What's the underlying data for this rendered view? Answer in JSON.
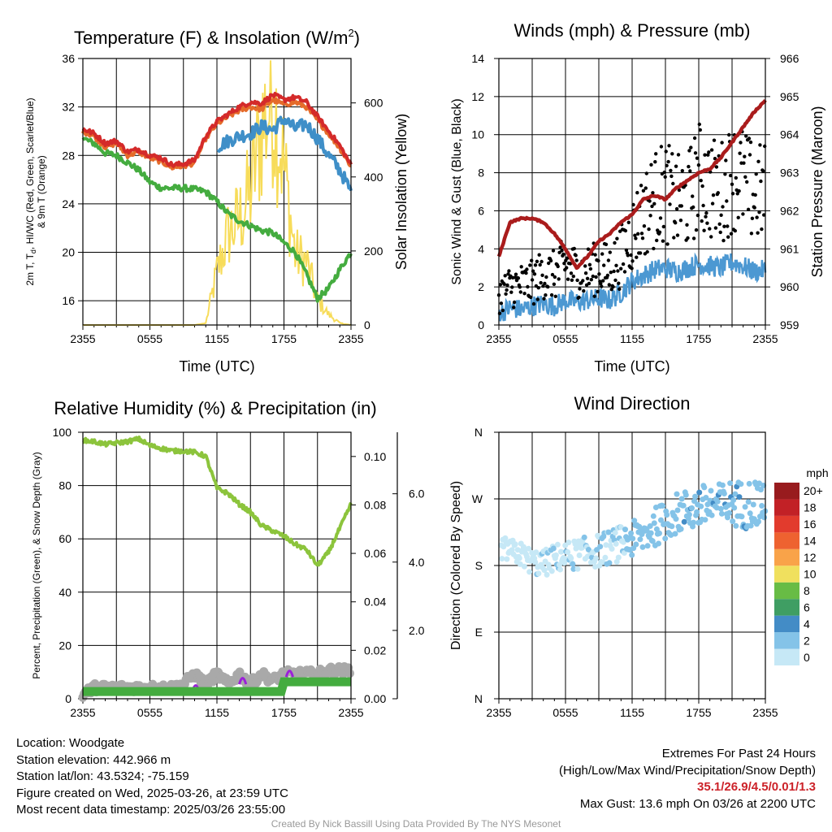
{
  "colors": {
    "temperature_red": "#d42a2a",
    "heat_index_green": "#e56b2a",
    "scarlet_blue": "#3f8fc8",
    "dewpoint_green": "#44ac3f",
    "insolation_yellow": "#f7dc5a",
    "sonic_wind_blue": "#4c98d2",
    "gust_black": "#000000",
    "pressure_maroon": "#aa1c1c",
    "rh_green": "#8cc43c",
    "precip_green": "#44ac3f",
    "snow_gray": "#a9a9a9",
    "precip_purple": "#9b20d9",
    "extremes_red": "#cc2229",
    "credit_gray": "#999999"
  },
  "chart_data": [
    {
      "id": "temperature",
      "type": "line",
      "title_main": "Temperature (F) & Insolation (W/m",
      "title_sup": "2",
      "title_end": ")",
      "xlabel": "Time (UTC)",
      "ylabel_left_lines": [
        "2m T, T",
        "d",
        ", HI/WC (Red, Green, Scarlet/Blue)",
        "& 9m T (Orange)"
      ],
      "ylabel_right": "Solar Insolation (Yellow)",
      "xticks": [
        "2355",
        "0555",
        "1155",
        "1755",
        "2355"
      ],
      "ylim_left": [
        14,
        36
      ],
      "yticks_left": [
        16,
        20,
        24,
        28,
        32,
        36
      ],
      "ylim_right": [
        0,
        720
      ],
      "yticks_right": [
        0,
        200,
        400,
        600
      ],
      "grid": true,
      "hours": [
        0,
        1,
        2,
        3,
        4,
        5,
        6,
        7,
        8,
        9,
        10,
        11,
        12,
        13,
        14,
        15,
        16,
        17,
        18,
        19,
        20,
        21,
        22,
        23,
        24
      ],
      "series": [
        {
          "key": "temp",
          "values": [
            30.2,
            29.8,
            29.0,
            29.2,
            28.3,
            28.5,
            28.0,
            27.8,
            27.2,
            27.3,
            27.6,
            29.6,
            30.8,
            31.4,
            32.0,
            32.4,
            32.3,
            33.0,
            32.6,
            32.8,
            32.4,
            31.2,
            30.0,
            28.8,
            27.2
          ]
        },
        {
          "key": "temp9m",
          "values": [
            30.0,
            29.6,
            28.7,
            29.0,
            28.0,
            28.3,
            27.8,
            27.5,
            27.0,
            27.1,
            27.4,
            29.4,
            30.6,
            31.2,
            31.7,
            32.0,
            31.8,
            32.6,
            32.2,
            32.4,
            32.0,
            30.9,
            29.8,
            28.6,
            27.1
          ]
        },
        {
          "key": "windchill",
          "values": [
            null,
            null,
            null,
            null,
            null,
            null,
            null,
            null,
            null,
            null,
            null,
            null,
            28.7,
            29.2,
            29.6,
            29.8,
            30.4,
            30.1,
            31.0,
            30.2,
            30.6,
            29.4,
            28.0,
            26.8,
            25.0
          ]
        },
        {
          "key": "dewpoint",
          "values": [
            29.4,
            29.0,
            28.2,
            28.0,
            27.4,
            26.8,
            25.8,
            25.3,
            25.3,
            25.3,
            25.2,
            25.0,
            24.2,
            23.2,
            22.6,
            22.2,
            21.8,
            21.6,
            20.8,
            20.0,
            18.2,
            16.2,
            17.0,
            18.6,
            20.0
          ]
        },
        {
          "key": "insolation",
          "values": [
            0,
            0,
            0,
            0,
            0,
            0,
            0,
            0,
            0,
            0,
            0,
            5,
            150,
            260,
            300,
            380,
            560,
            650,
            450,
            200,
            180,
            70,
            30,
            5,
            0
          ]
        }
      ]
    },
    {
      "id": "winds",
      "type": "scatter",
      "title": "Winds (mph) & Pressure (mb)",
      "xlabel": "Time (UTC)",
      "ylabel_left": "Sonic Wind & Gust (Blue, Black)",
      "ylabel_right": "Station Pressure (Maroon)",
      "xticks": [
        "2355",
        "0555",
        "1155",
        "1755",
        "2355"
      ],
      "ylim_left": [
        0,
        14
      ],
      "yticks_left": [
        0,
        2,
        4,
        6,
        8,
        10,
        12,
        14
      ],
      "ylim_right": [
        959,
        966
      ],
      "yticks_right": [
        959,
        960,
        961,
        962,
        963,
        964,
        965,
        966
      ],
      "grid": true,
      "hours": [
        0,
        1,
        2,
        3,
        4,
        5,
        6,
        7,
        8,
        9,
        10,
        11,
        12,
        13,
        14,
        15,
        16,
        17,
        18,
        19,
        20,
        21,
        22,
        23,
        24
      ],
      "series": [
        {
          "key": "pressure",
          "values": [
            960.8,
            961.7,
            961.8,
            961.8,
            961.7,
            961.4,
            961.0,
            960.5,
            960.8,
            961.2,
            961.4,
            961.7,
            961.9,
            962.3,
            962.4,
            962.3,
            962.6,
            962.8,
            963.0,
            963.1,
            963.4,
            963.8,
            964.2,
            964.6,
            964.9
          ]
        },
        {
          "key": "wind",
          "values": [
            0.6,
            0.9,
            0.8,
            1.0,
            1.1,
            1.0,
            1.3,
            1.2,
            1.3,
            1.4,
            1.3,
            1.7,
            2.3,
            2.6,
            2.9,
            3.0,
            2.8,
            3.0,
            3.2,
            3.1,
            3.0,
            3.3,
            3.1,
            2.8,
            2.9
          ]
        },
        {
          "key": "gust_center",
          "values": [
            1.6,
            2.0,
            2.1,
            2.2,
            2.7,
            2.6,
            3.2,
            2.8,
            2.8,
            3.0,
            2.9,
            3.6,
            4.8,
            5.8,
            6.6,
            7.0,
            6.4,
            6.5,
            7.8,
            7.2,
            7.0,
            7.8,
            7.6,
            6.8,
            7.0
          ]
        }
      ]
    },
    {
      "id": "humidity",
      "type": "line",
      "title": "Relative Humidity (%) & Precipitation (in)",
      "ylabel_left": "Percent, Precipitation (Green), & Snow Depth (Gray)",
      "xticks": [
        "2355",
        "0555",
        "1155",
        "1755",
        "2355"
      ],
      "ylim_left": [
        0,
        100
      ],
      "yticks_left": [
        0,
        20,
        40,
        60,
        80,
        100
      ],
      "ylim_precip": [
        0,
        0.11
      ],
      "yticks_precip": [
        "0.00",
        "0.02",
        "0.04",
        "0.06",
        "0.08",
        "0.10"
      ],
      "ylim_snow": [
        0,
        7.8
      ],
      "yticks_snow": [
        "2.0",
        "4.0",
        "6.0"
      ],
      "grid": true,
      "hours": [
        0,
        1,
        2,
        3,
        4,
        5,
        6,
        7,
        8,
        9,
        10,
        11,
        12,
        13,
        14,
        15,
        16,
        17,
        18,
        19,
        20,
        21,
        22,
        23,
        24
      ],
      "series": [
        {
          "key": "rh",
          "values": [
            97,
            96.5,
            95.5,
            96,
            96.5,
            97.5,
            95,
            94,
            93,
            93,
            92.5,
            91,
            79,
            77,
            73,
            70,
            65,
            63,
            61,
            58,
            56,
            50,
            55,
            64,
            73
          ]
        },
        {
          "key": "precip_in",
          "values": [
            0.003,
            0.003,
            0.003,
            0.003,
            0.003,
            0.003,
            0.003,
            0.003,
            0.003,
            0.003,
            0.003,
            0.003,
            0.003,
            0.003,
            0.003,
            0.003,
            0.003,
            0.003,
            0.007,
            0.007,
            0.007,
            0.007,
            0.007,
            0.007,
            0.007
          ]
        },
        {
          "key": "snow_depth_in",
          "values": [
            0,
            0.2,
            0.2,
            0.2,
            0.2,
            0.2,
            0.2,
            0.2,
            0.2,
            0.3,
            0.6,
            0.3,
            0.6,
            0.3,
            0.6,
            0.3,
            0.6,
            0.4,
            0.6,
            0.6,
            0.6,
            0.6,
            0.7,
            0.7,
            0.7
          ]
        }
      ]
    },
    {
      "id": "winddir",
      "type": "scatter",
      "title": "Wind Direction",
      "ylabel_left": "Direction (Colored By Speed)",
      "xticks": [
        "2355",
        "0555",
        "1155",
        "1755",
        "2355"
      ],
      "yticks_dir": [
        "N",
        "E",
        "S",
        "W",
        "N"
      ],
      "ylim_deg": [
        0,
        360
      ],
      "grid": true,
      "colorbar_unit": "mph",
      "colorbar_labels": [
        "0",
        "2",
        "4",
        "6",
        "8",
        "10",
        "12",
        "14",
        "16",
        "18",
        "20+"
      ],
      "colorbar_colors": [
        "#c6e8f6",
        "#84c3e8",
        "#438cc6",
        "#3f9e63",
        "#68bc45",
        "#f0e05e",
        "#f9a349",
        "#ee6230",
        "#e23b2d",
        "#c22126",
        "#981b1e"
      ],
      "hours": [
        0,
        1,
        2,
        3,
        4,
        5,
        6,
        7,
        8,
        9,
        10,
        11,
        12,
        13,
        14,
        15,
        16,
        17,
        18,
        19,
        20,
        21,
        22,
        23,
        24
      ],
      "series": [
        {
          "key": "dir_center_deg",
          "values": [
            205,
            200,
            195,
            185,
            182,
            190,
            192,
            195,
            198,
            200,
            205,
            210,
            215,
            220,
            232,
            240,
            250,
            255,
            258,
            262,
            260,
            265,
            262,
            265,
            268
          ]
        },
        {
          "key": "speed_mph",
          "values": [
            0.6,
            0.9,
            0.8,
            1.0,
            1.1,
            1.0,
            1.3,
            1.2,
            1.3,
            1.4,
            1.3,
            1.7,
            2.3,
            2.6,
            2.9,
            3.0,
            2.8,
            3.0,
            3.2,
            3.1,
            3.0,
            3.3,
            3.1,
            2.8,
            2.9
          ]
        }
      ]
    }
  ],
  "info": {
    "location": "Location: Woodgate",
    "elevation": "Station elevation: 442.966 m",
    "latlon": "Station lat/lon: 43.5324; -75.159",
    "created": "Figure created on Wed, 2025-03-26, at 23:59 UTC",
    "recent": "Most recent data timestamp: 2025/03/26 23:55:00"
  },
  "extremes": {
    "title": "Extremes For Past 24 Hours",
    "subtitle": "(High/Low/Max Wind/Precipitation/Snow Depth)",
    "values": "35.1/26.9/4.5/0.01/1.3",
    "max_gust": "Max Gust: 13.6 mph On 03/26 at 2200 UTC"
  },
  "credit": "Created By Nick Bassill Using Data Provided By The NYS Mesonet"
}
